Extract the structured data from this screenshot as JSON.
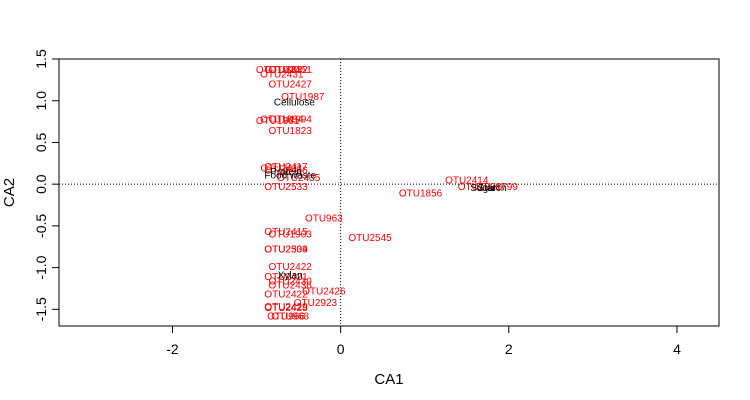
{
  "chart_data": {
    "type": "scatter",
    "xlabel": "CA1",
    "ylabel": "CA2",
    "xlim": [
      -3.35,
      4.5
    ],
    "ylim": [
      -1.7,
      1.5
    ],
    "x_ticks": [
      -2,
      0,
      2,
      4
    ],
    "y_ticks": [
      -1.5,
      -1.0,
      -0.5,
      0.0,
      0.5,
      1.0,
      1.5
    ],
    "x_tick_labels": [
      "-2",
      "0",
      "2",
      "4"
    ],
    "y_tick_labels": [
      "-1.5",
      "-1.0",
      "-0.5",
      "0.0",
      "0.5",
      "1.0",
      "1.5"
    ],
    "reference_lines": {
      "x": 0,
      "y": 0,
      "style": "dotted"
    },
    "colors": {
      "species": "#ff0000",
      "sites": "#000000"
    },
    "sites": [
      {
        "label": "Cellulose",
        "x": -0.55,
        "y": 0.97
      },
      {
        "label": "Food waste",
        "x": -0.6,
        "y": 0.1
      },
      {
        "label": "Protein",
        "x": -0.65,
        "y": 0.14
      },
      {
        "label": "Xylan",
        "x": -0.6,
        "y": -1.1
      },
      {
        "label": "Sugar",
        "x": 1.7,
        "y": -0.05
      },
      {
        "label": "Starch",
        "x": 1.8,
        "y": -0.05
      }
    ],
    "species": [
      {
        "label": "OTU1990",
        "x": -0.75,
        "y": 1.36
      },
      {
        "label": "OTU1832",
        "x": -0.65,
        "y": 1.36
      },
      {
        "label": "OTU2451",
        "x": -0.6,
        "y": 1.36
      },
      {
        "label": "OTU2431",
        "x": -0.7,
        "y": 1.31
      },
      {
        "label": "OTU2427",
        "x": -0.6,
        "y": 1.19
      },
      {
        "label": "OTU1987",
        "x": -0.45,
        "y": 1.04
      },
      {
        "label": "OTU1894",
        "x": -0.7,
        "y": 0.77
      },
      {
        "label": "OTU1994",
        "x": -0.6,
        "y": 0.77
      },
      {
        "label": "OTU1861",
        "x": -0.75,
        "y": 0.75
      },
      {
        "label": "OTU1823",
        "x": -0.6,
        "y": 0.63
      },
      {
        "label": "OTU2417",
        "x": -0.65,
        "y": 0.2
      },
      {
        "label": "OTU2411",
        "x": -0.7,
        "y": 0.18
      },
      {
        "label": "OTU2456",
        "x": -0.65,
        "y": 0.16
      },
      {
        "label": "OTU2435",
        "x": -0.5,
        "y": 0.07
      },
      {
        "label": "OTU2533",
        "x": -0.65,
        "y": -0.04
      },
      {
        "label": "OTU2414",
        "x": 1.5,
        "y": 0.04
      },
      {
        "label": "OTU1938",
        "x": 1.65,
        "y": -0.04
      },
      {
        "label": "OTU1799",
        "x": 1.85,
        "y": -0.04
      },
      {
        "label": "OTU1856",
        "x": 0.95,
        "y": -0.12
      },
      {
        "label": "OTU963",
        "x": -0.2,
        "y": -0.42
      },
      {
        "label": "OTU2415",
        "x": -0.65,
        "y": -0.58
      },
      {
        "label": "OTU1903",
        "x": -0.6,
        "y": -0.61
      },
      {
        "label": "OTU2545",
        "x": 0.35,
        "y": -0.65
      },
      {
        "label": "OTU2534",
        "x": -0.65,
        "y": -0.79
      },
      {
        "label": "OTU2309",
        "x": -0.65,
        "y": -0.79
      },
      {
        "label": "OTU2422",
        "x": -0.6,
        "y": -1.0
      },
      {
        "label": "OTU2421",
        "x": -0.65,
        "y": -1.12
      },
      {
        "label": "OTU2430",
        "x": -0.6,
        "y": -1.17
      },
      {
        "label": "OTU2436",
        "x": -0.6,
        "y": -1.22
      },
      {
        "label": "OTU2426",
        "x": -0.2,
        "y": -1.29
      },
      {
        "label": "OTU2422",
        "x": -0.65,
        "y": -1.33
      },
      {
        "label": "OTU2923",
        "x": -0.3,
        "y": -1.43
      },
      {
        "label": "OTU2429",
        "x": -0.65,
        "y": -1.48
      },
      {
        "label": "OTU2428",
        "x": -0.65,
        "y": -1.49
      },
      {
        "label": "OTU966",
        "x": -0.65,
        "y": -1.59
      },
      {
        "label": "OTU968",
        "x": -0.6,
        "y": -1.59
      }
    ]
  }
}
